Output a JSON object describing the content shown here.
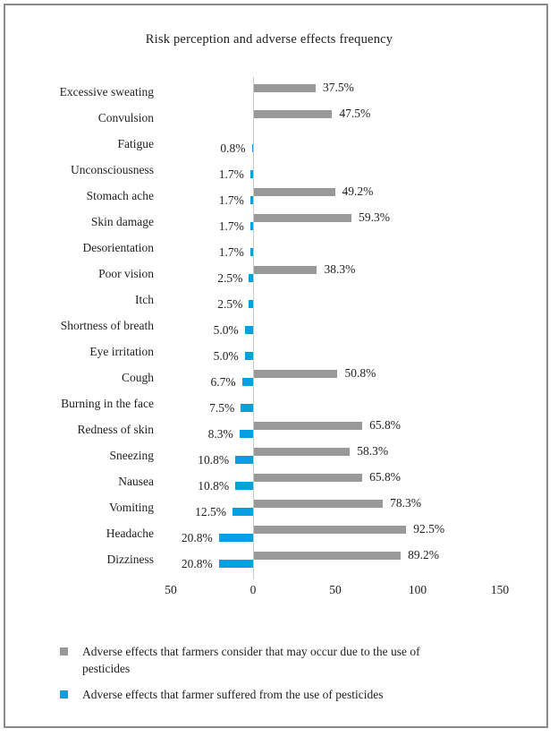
{
  "chart_data": {
    "type": "bar",
    "orientation": "horizontal-diverging",
    "title": "Risk perception and adverse effects frequency",
    "categories": [
      "Excessive sweating",
      "Convulsion",
      "Fatigue",
      "Unconsciousness",
      "Stomach ache",
      "Skin damage",
      "Desorientation",
      "Poor vision",
      "Itch",
      "Shortness of breath",
      "Eye irritation",
      "Cough",
      "Burning in the face",
      "Redness of skin",
      "Sneezing",
      "Nausea",
      "Vomiting",
      "Headache",
      "Dizziness"
    ],
    "series": [
      {
        "name": "Adverse effects that farmers consider that may occur due to the use of pesticides",
        "color": "#999999",
        "direction": "right",
        "values": [
          37.5,
          47.5,
          null,
          null,
          49.2,
          59.3,
          null,
          38.3,
          null,
          null,
          null,
          50.8,
          null,
          65.8,
          58.3,
          65.8,
          78.3,
          92.5,
          89.2
        ]
      },
      {
        "name": "Adverse effects that farmer suffered from the use of pesticides",
        "color": "#069fdf",
        "direction": "left",
        "values": [
          null,
          null,
          0.8,
          1.7,
          1.7,
          1.7,
          1.7,
          2.5,
          2.5,
          5.0,
          5.0,
          6.7,
          7.5,
          8.3,
          10.8,
          10.8,
          12.5,
          20.8,
          20.8
        ]
      }
    ],
    "value_suffix": "%",
    "value_decimals": 1,
    "xlim": [
      -50,
      150
    ],
    "x_ticks": [
      -50,
      0,
      50,
      100,
      150
    ],
    "x_tick_labels": [
      "50",
      "0",
      "50",
      "100",
      "150"
    ],
    "grid": false,
    "legend_position": "bottom-left",
    "axis_line_color": "#c9c9c9"
  }
}
